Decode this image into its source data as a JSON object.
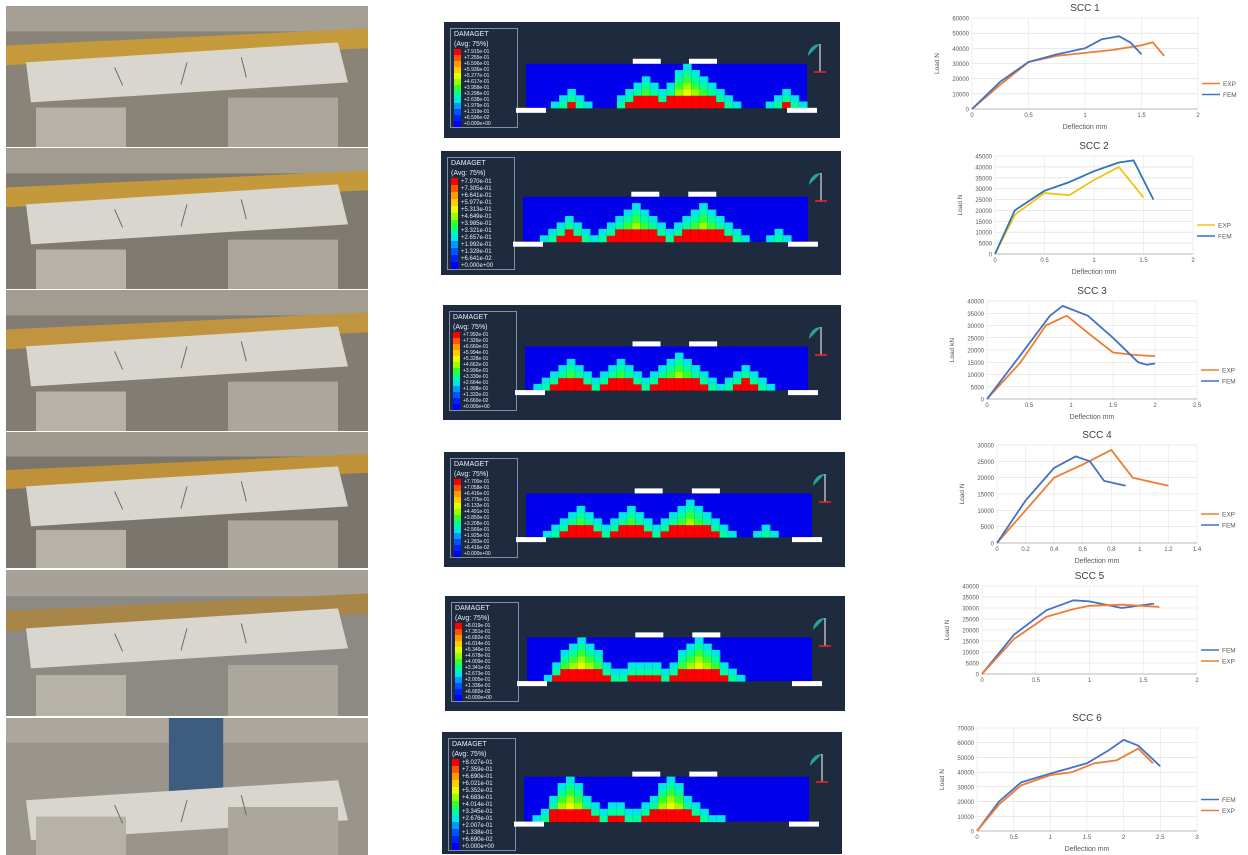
{
  "fea_panel": {
    "label": "DAMAGET",
    "averaging": "(Avg: 75%)",
    "colors": [
      "#ff0000",
      "#ff5500",
      "#ff9900",
      "#ffcc00",
      "#e6ff00",
      "#99ff00",
      "#33ff33",
      "#00ff99",
      "#00e6e6",
      "#0099ff",
      "#0055ff",
      "#0022ff",
      "#0000ff"
    ]
  },
  "fea_legends": [
    [
      "+7.915e-01",
      "+7.255e-01",
      "+6.596e-01",
      "+5.936e-01",
      "+5.277e-01",
      "+4.617e-01",
      "+3.958e-01",
      "+3.298e-01",
      "+2.638e-01",
      "+1.979e-01",
      "+1.319e-01",
      "+6.596e-02",
      "+0.000e+00"
    ],
    [
      "+7.970e-01",
      "+7.305e-01",
      "+6.641e-01",
      "+5.977e-01",
      "+5.313e-01",
      "+4.649e-01",
      "+3.985e-01",
      "+3.321e-01",
      "+2.657e-01",
      "+1.992e-01",
      "+1.328e-01",
      "+6.641e-02",
      "+0.000e+00"
    ],
    [
      "+7.992e-01",
      "+7.326e-01",
      "+6.660e-01",
      "+5.994e-01",
      "+5.328e-01",
      "+4.662e-01",
      "+3.996e-01",
      "+3.330e-01",
      "+2.664e-01",
      "+1.998e-01",
      "+1.332e-01",
      "+6.660e-02",
      "+0.000e+00"
    ],
    [
      "+7.700e-01",
      "+7.058e-01",
      "+6.416e-01",
      "+5.775e-01",
      "+5.133e-01",
      "+4.491e-01",
      "+3.850e-01",
      "+3.208e-01",
      "+2.566e-01",
      "+1.925e-01",
      "+1.283e-01",
      "+6.416e-02",
      "+0.000e+00"
    ],
    [
      "+8.019e-01",
      "+7.351e-01",
      "+6.682e-01",
      "+6.014e-01",
      "+5.346e-01",
      "+4.678e-01",
      "+4.009e-01",
      "+3.341e-01",
      "+2.673e-01",
      "+2.005e-01",
      "+1.336e-01",
      "+6.682e-02",
      "+0.000e+00"
    ],
    [
      "+8.027e-01",
      "+7.359e-01",
      "+6.690e-01",
      "+6.021e-01",
      "+5.352e-01",
      "+4.683e-01",
      "+4.014e-01",
      "+3.345e-01",
      "+2.676e-01",
      "+2.007e-01",
      "+1.338e-01",
      "+6.690e-02",
      "+0.000e+00"
    ]
  ],
  "chart_data": [
    {
      "type": "line",
      "title": "SCC 1",
      "xlabel": "Deflection mm",
      "ylabel": "Load N",
      "xlim": [
        0,
        2
      ],
      "ylim": [
        0,
        60000
      ],
      "xticks": [
        "0",
        "0.5",
        "1",
        "1.5",
        "2"
      ],
      "yticks": [
        "0",
        "10000",
        "20000",
        "30000",
        "40000",
        "50000",
        "60000"
      ],
      "legend_position": "right",
      "series": [
        {
          "name": "EXP",
          "color": "#ed7d31",
          "x": [
            0,
            0.25,
            0.5,
            0.75,
            1.0,
            1.25,
            1.5,
            1.6,
            1.7
          ],
          "y": [
            0,
            16000,
            31000,
            35000,
            37000,
            39000,
            42000,
            44000,
            35000
          ]
        },
        {
          "name": "FEM",
          "color": "#4472c4",
          "x": [
            0,
            0.25,
            0.5,
            0.75,
            1.0,
            1.15,
            1.3,
            1.4,
            1.5
          ],
          "y": [
            0,
            18000,
            31000,
            36000,
            40000,
            46000,
            48000,
            44000,
            36000
          ]
        }
      ]
    },
    {
      "type": "line",
      "title": "SCC 2",
      "xlabel": "Deflection mm",
      "ylabel": "Load N",
      "xlim": [
        0,
        2
      ],
      "ylim": [
        0,
        45000
      ],
      "xticks": [
        "0",
        "0.5",
        "1",
        "1.5",
        "2"
      ],
      "yticks": [
        "0",
        "5000",
        "10000",
        "15000",
        "20000",
        "25000",
        "30000",
        "35000",
        "40000",
        "45000"
      ],
      "legend_position": "right",
      "series": [
        {
          "name": "EXP",
          "color": "#f2c314",
          "x": [
            0,
            0.2,
            0.5,
            0.75,
            1.0,
            1.25,
            1.5
          ],
          "y": [
            0,
            18000,
            28000,
            27000,
            34000,
            40000,
            26000
          ]
        },
        {
          "name": "FEM",
          "color": "#2e75b6",
          "x": [
            0,
            0.2,
            0.5,
            0.75,
            1.0,
            1.25,
            1.4,
            1.6
          ],
          "y": [
            0,
            20000,
            29000,
            33000,
            38000,
            42000,
            43000,
            25000
          ]
        }
      ]
    },
    {
      "type": "line",
      "title": "SCC 3",
      "xlabel": "Deflection mm",
      "ylabel": "Load kN",
      "xlim": [
        0,
        2.5
      ],
      "ylim": [
        0,
        40000
      ],
      "xticks": [
        "0",
        "0.5",
        "1",
        "1.5",
        "2",
        "2.5"
      ],
      "yticks": [
        "0",
        "5000",
        "10000",
        "15000",
        "20000",
        "25000",
        "30000",
        "35000",
        "40000"
      ],
      "legend_position": "right",
      "series": [
        {
          "name": "EXP",
          "color": "#ed7d31",
          "x": [
            0,
            0.4,
            0.7,
            0.95,
            1.2,
            1.5,
            1.75,
            2.0
          ],
          "y": [
            0,
            15000,
            30000,
            34000,
            27000,
            19000,
            18000,
            17500
          ]
        },
        {
          "name": "FEM",
          "color": "#4472c4",
          "x": [
            0,
            0.4,
            0.75,
            0.9,
            1.2,
            1.5,
            1.8,
            1.9,
            2.0
          ],
          "y": [
            0,
            18000,
            34000,
            38000,
            34000,
            25000,
            15000,
            14000,
            14500
          ]
        }
      ]
    },
    {
      "type": "line",
      "title": "SCC 4",
      "xlabel": "Deflection mm",
      "ylabel": "Load N",
      "xlim": [
        0,
        1.4
      ],
      "ylim": [
        0,
        30000
      ],
      "xticks": [
        "0",
        "0.2",
        "0.4",
        "0.6",
        "0.8",
        "1",
        "1.2",
        "1.4"
      ],
      "yticks": [
        "0",
        "5000",
        "10000",
        "15000",
        "20000",
        "25000",
        "30000"
      ],
      "legend_position": "right",
      "series": [
        {
          "name": "EXP",
          "color": "#ed7d31",
          "x": [
            0,
            0.2,
            0.4,
            0.6,
            0.8,
            0.95,
            1.2
          ],
          "y": [
            0,
            10000,
            20000,
            24000,
            28500,
            20000,
            17500
          ]
        },
        {
          "name": "FEM",
          "color": "#4472c4",
          "x": [
            0,
            0.2,
            0.4,
            0.55,
            0.65,
            0.75,
            0.9
          ],
          "y": [
            0,
            13000,
            23000,
            26500,
            25000,
            19000,
            17500
          ]
        }
      ]
    },
    {
      "type": "line",
      "title": "SCC 5",
      "xlabel": "",
      "ylabel": "Load N",
      "xlim": [
        0,
        2
      ],
      "ylim": [
        0,
        40000
      ],
      "xticks": [
        "0",
        "0.5",
        "1",
        "1.5",
        "2"
      ],
      "yticks": [
        "0",
        "5000",
        "10000",
        "15000",
        "20000",
        "25000",
        "30000",
        "35000",
        "40000"
      ],
      "legend_position": "right",
      "series": [
        {
          "name": "FEM",
          "color": "#4472c4",
          "x": [
            0,
            0.3,
            0.6,
            0.85,
            1.0,
            1.3,
            1.6
          ],
          "y": [
            0,
            18000,
            29000,
            33500,
            33000,
            30000,
            32000
          ]
        },
        {
          "name": "EXP",
          "color": "#ed7d31",
          "x": [
            0,
            0.3,
            0.6,
            0.85,
            1.0,
            1.3,
            1.65
          ],
          "y": [
            0,
            16000,
            26000,
            29500,
            31000,
            31500,
            30500
          ]
        }
      ]
    },
    {
      "type": "line",
      "title": "SCC 6",
      "xlabel": "Deflection mm",
      "ylabel": "Load N",
      "xlim": [
        0,
        3
      ],
      "ylim": [
        0,
        70000
      ],
      "xticks": [
        "0",
        "0.5",
        "1",
        "1.5",
        "2",
        "2.5",
        "3"
      ],
      "yticks": [
        "0",
        "10000",
        "20000",
        "30000",
        "40000",
        "50000",
        "60000",
        "70000"
      ],
      "legend_position": "right",
      "series": [
        {
          "name": "FEM",
          "color": "#4472c4",
          "x": [
            0,
            0.3,
            0.6,
            1.0,
            1.5,
            1.8,
            2.0,
            2.2,
            2.5
          ],
          "y": [
            0,
            20000,
            33000,
            39000,
            46000,
            55000,
            62000,
            58000,
            44000
          ]
        },
        {
          "name": "EXP",
          "color": "#ed7d31",
          "x": [
            0,
            0.3,
            0.6,
            1.0,
            1.3,
            1.6,
            1.9,
            2.2,
            2.4
          ],
          "y": [
            0,
            18000,
            31000,
            38000,
            40000,
            46000,
            48000,
            56000,
            46000
          ]
        }
      ]
    }
  ]
}
